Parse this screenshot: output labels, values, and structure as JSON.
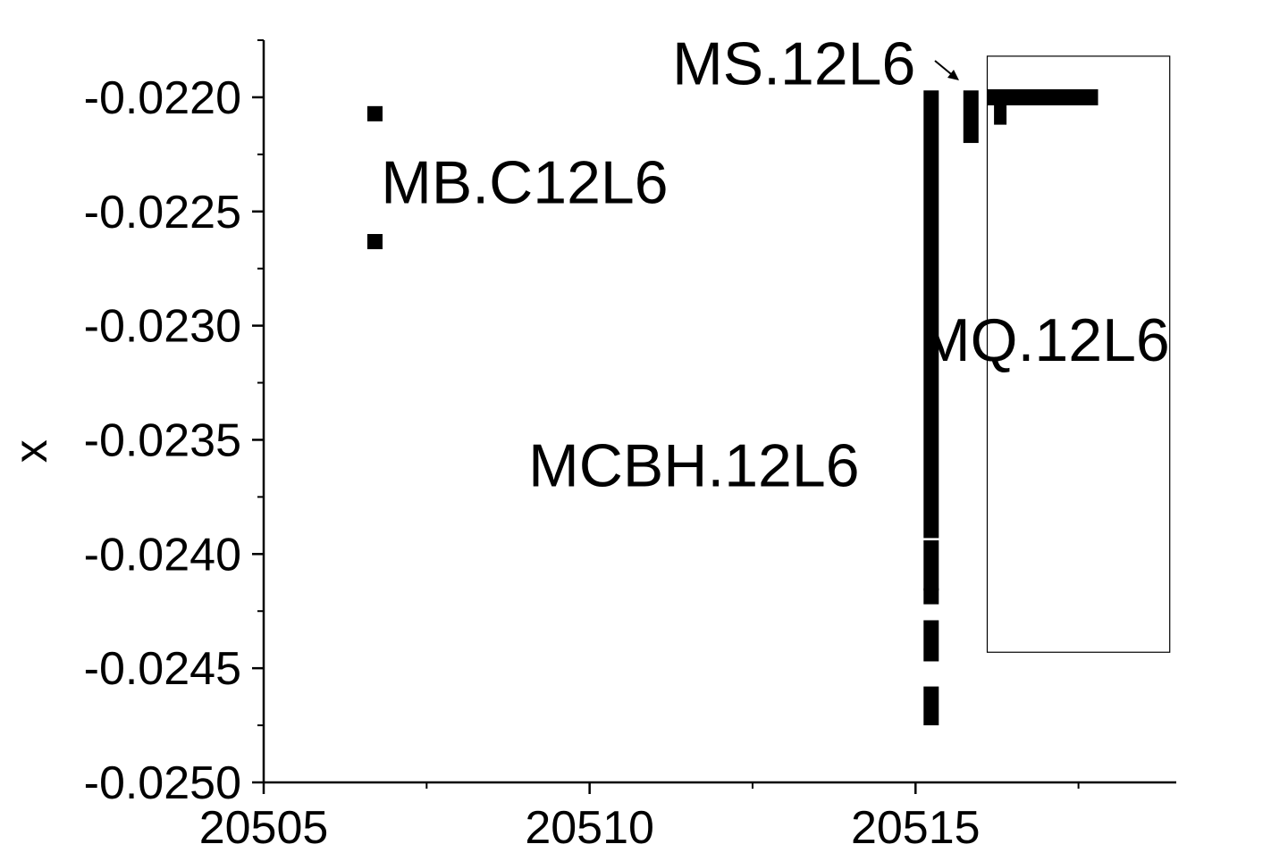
{
  "chart_data": {
    "type": "scatter",
    "title": "",
    "xlabel": "",
    "ylabel": "x",
    "xlim": [
      20505,
      20519
    ],
    "ylim": [
      -0.025,
      -0.02175
    ],
    "x_ticks": [
      20505,
      20510,
      20515
    ],
    "x_tick_labels": [
      "20505",
      "20510",
      "20515"
    ],
    "y_ticks": [
      -0.022,
      -0.0225,
      -0.023,
      -0.0235,
      -0.024,
      -0.0245,
      -0.025
    ],
    "y_tick_labels": [
      "-0.0220",
      "-0.0225",
      "-0.0230",
      "-0.0235",
      "-0.0240",
      "-0.0245",
      "-0.0250"
    ],
    "grid": false,
    "legend": "none",
    "marker_color": "#000000",
    "series": [
      {
        "points": [
          {
            "x": 20506.7,
            "y": -0.02207
          },
          {
            "x": 20506.7,
            "y": -0.02263
          }
        ]
      },
      {
        "segments": [
          {
            "x": 20515.24,
            "y1": -0.02197,
            "y2": -0.02393
          },
          {
            "x": 20515.24,
            "y1": -0.02394,
            "y2": -0.02416
          },
          {
            "x": 20515.24,
            "y1": -0.02415,
            "y2": -0.02422
          },
          {
            "x": 20515.24,
            "y1": -0.02429,
            "y2": -0.02447
          },
          {
            "x": 20515.24,
            "y1": -0.02458,
            "y2": -0.02475
          }
        ]
      },
      {
        "segments": [
          {
            "x": 20515.85,
            "y1": -0.02197,
            "y2": -0.0222
          }
        ]
      },
      {
        "segments": [
          {
            "x": 20516.3,
            "y1": -0.02197,
            "y2": -0.02212
          }
        ],
        "hsegment": {
          "x1": 20516.1,
          "x2": 20517.8,
          "y": -0.022
        }
      }
    ],
    "annotations": [
      {
        "text": "MB.C12L6",
        "x": 20506.8,
        "y": -0.02237
      },
      {
        "text": "MS.12L6",
        "x": 20515.0,
        "y": -0.02185
      },
      {
        "text": "MCBH.12L6",
        "x": 20511.6,
        "y": -0.02361
      },
      {
        "text": "MQ.12L6",
        "x": 20518.9,
        "y": -0.02306
      }
    ],
    "region_box": {
      "x1": 20516.1,
      "x2": 20518.9,
      "y1": -0.02443,
      "y2": -0.02182
    }
  }
}
